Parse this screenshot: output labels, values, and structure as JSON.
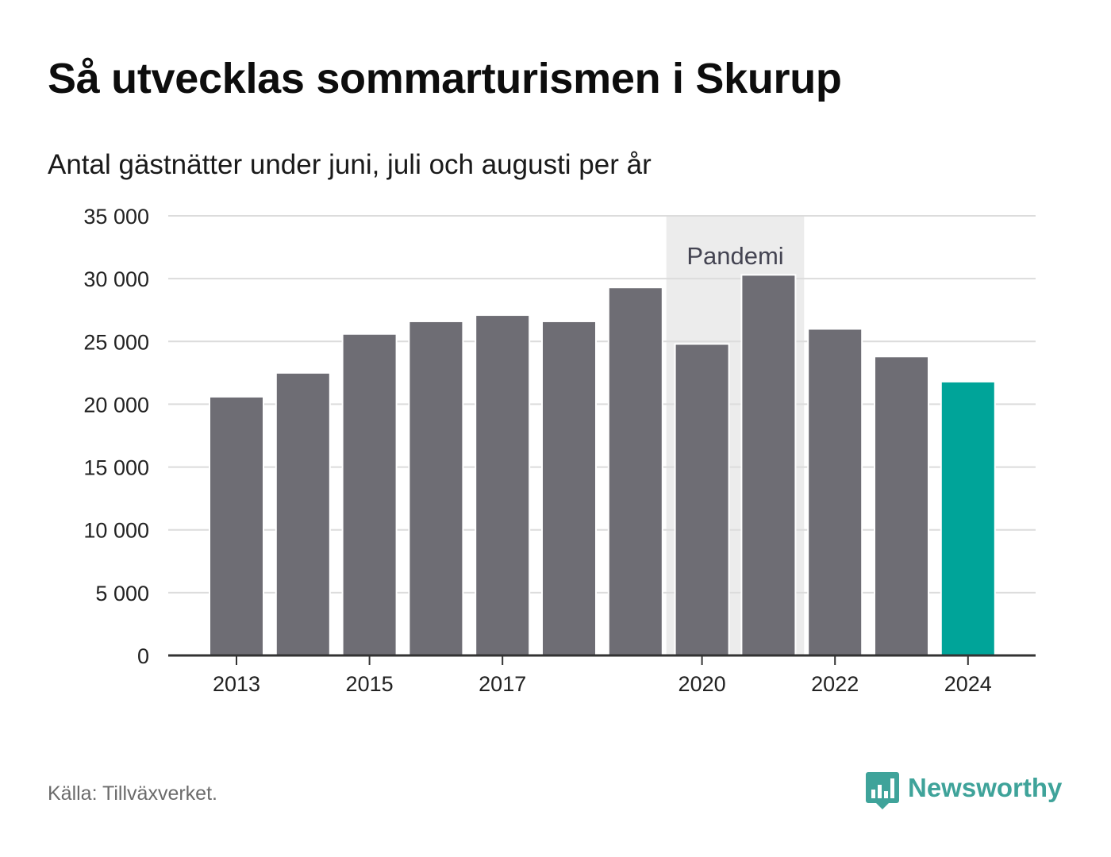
{
  "title": "Så utvecklas sommarturismen i Skurup",
  "subtitle": "Antal gästnätter under juni, juli och augusti per år",
  "source": "Källa: Tillväxverket.",
  "brand": {
    "name": "Newsworthy",
    "logo_icon": "chart-bubble-icon",
    "color": "#3fa39a"
  },
  "chart_data": {
    "type": "bar",
    "categories": [
      "2013",
      "2014",
      "2015",
      "2016",
      "2017",
      "2018",
      "2019",
      "2020",
      "2021",
      "2022",
      "2023",
      "2024"
    ],
    "values": [
      20600,
      22500,
      25600,
      26600,
      27100,
      26600,
      29300,
      24800,
      30300,
      26000,
      23800,
      21800
    ],
    "x_tick_labels": [
      "2013",
      "2015",
      "2017",
      "2020",
      "2022",
      "2024"
    ],
    "y_ticks": [
      0,
      5000,
      10000,
      15000,
      20000,
      25000,
      30000,
      35000
    ],
    "y_tick_labels": [
      "0",
      "5 000",
      "10 000",
      "15 000",
      "20 000",
      "25 000",
      "30 000",
      "35 000"
    ],
    "ylim": [
      0,
      35000
    ],
    "grid": true,
    "annotation": {
      "label": "Pandemi",
      "from": "2020",
      "to": "2021",
      "color": "#ececec"
    },
    "colors": {
      "bar": "#6e6d74",
      "highlight": "#00a499",
      "highlight_category": "2024",
      "grid": "#dcdcdc",
      "axis": "#333333"
    }
  }
}
